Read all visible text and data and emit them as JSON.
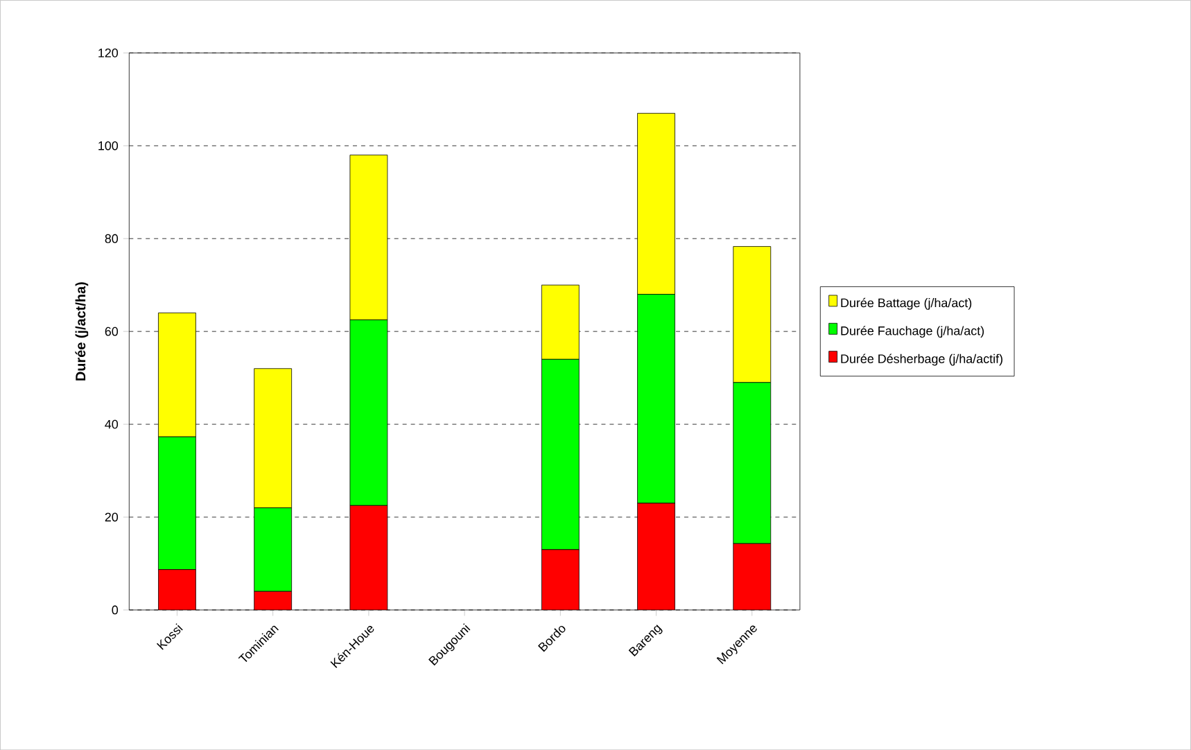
{
  "chart_data": {
    "type": "bar",
    "stacked": true,
    "ylabel": "Durée (j/act/ha)",
    "categories": [
      "Kossi",
      "Tominian",
      "Kén-Houe",
      "Bougouni",
      "Bordo",
      "Bareng",
      "Moyenne"
    ],
    "series": [
      {
        "name": "Durée Désherbage  (j/ha/actif)",
        "color": "#ff0000",
        "values": [
          8.7,
          4,
          22.5,
          0,
          13,
          23,
          14.3
        ]
      },
      {
        "name": "Durée Fauchage  (j/ha/act)",
        "color": "#00ff00",
        "values": [
          28.6,
          18,
          40,
          0,
          41,
          45,
          34.7
        ]
      },
      {
        "name": "Durée Battage  (j/ha/act)",
        "color": "#ffff00",
        "values": [
          26.7,
          30,
          35.5,
          0,
          16,
          39,
          29.3
        ]
      }
    ],
    "ylim": [
      0,
      120
    ],
    "yticks": [
      0,
      20,
      40,
      60,
      80,
      100,
      120
    ],
    "grid": "y",
    "legend": "right"
  }
}
